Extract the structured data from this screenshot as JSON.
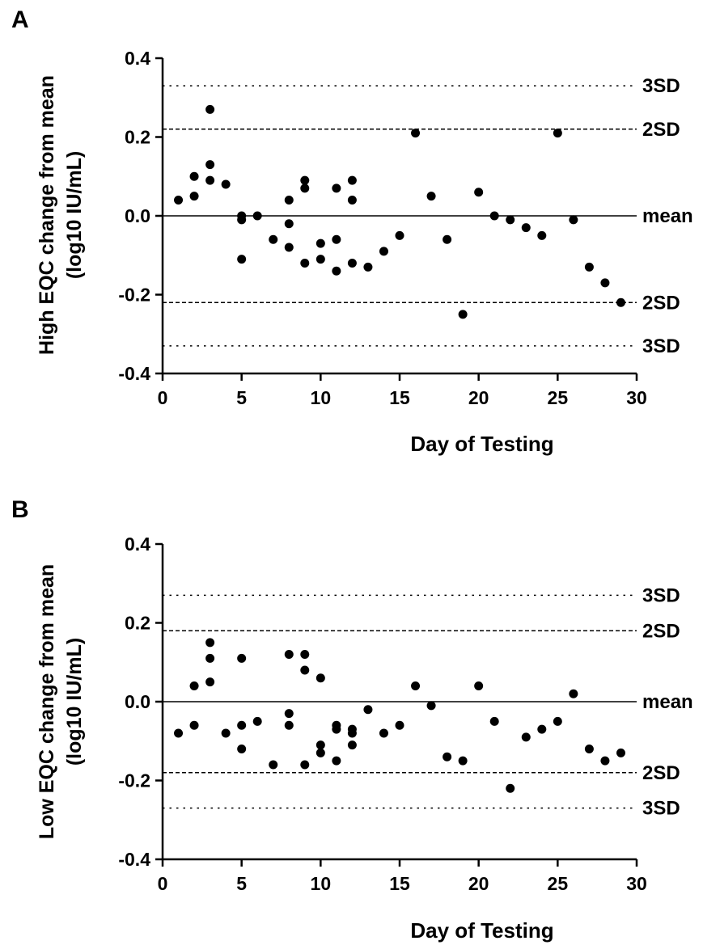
{
  "chart_data": [
    {
      "type": "scatter",
      "panel_label": "A",
      "title": "",
      "xlabel": "Day of Testing",
      "ylabel_line1": "High EQC change from mean",
      "ylabel_line2": "(log10 IU/mL)",
      "xlim": [
        0,
        30
      ],
      "ylim": [
        -0.4,
        0.4
      ],
      "xticks": [
        0,
        5,
        10,
        15,
        20,
        25,
        30
      ],
      "yticks": [
        -0.4,
        -0.2,
        0.0,
        0.2,
        0.4
      ],
      "xtick_labels": [
        "0",
        "5",
        "10",
        "15",
        "20",
        "25",
        "30"
      ],
      "ytick_labels": [
        "-0.4",
        "-0.2",
        "0.0",
        "0.2",
        "0.4"
      ],
      "grid": false,
      "marker_color": "#000000",
      "reference_lines": [
        {
          "label": "3SD",
          "y": 0.33,
          "style": "dotted"
        },
        {
          "label": "2SD",
          "y": 0.22,
          "style": "dashed"
        },
        {
          "label": "mean",
          "y": 0.0,
          "style": "solid"
        },
        {
          "label": "2SD",
          "y": -0.22,
          "style": "dashed"
        },
        {
          "label": "3SD",
          "y": -0.33,
          "style": "dotted"
        }
      ],
      "points": [
        [
          1,
          0.04
        ],
        [
          2,
          0.1
        ],
        [
          2,
          0.05
        ],
        [
          3,
          0.27
        ],
        [
          3,
          0.13
        ],
        [
          3,
          0.09
        ],
        [
          4,
          0.08
        ],
        [
          5,
          0.0
        ],
        [
          5,
          -0.01
        ],
        [
          5,
          -0.11
        ],
        [
          6,
          0.0
        ],
        [
          7,
          -0.06
        ],
        [
          8,
          0.04
        ],
        [
          8,
          -0.02
        ],
        [
          8,
          -0.08
        ],
        [
          9,
          0.09
        ],
        [
          9,
          0.07
        ],
        [
          9,
          -0.12
        ],
        [
          10,
          -0.07
        ],
        [
          10,
          -0.11
        ],
        [
          11,
          0.07
        ],
        [
          11,
          -0.06
        ],
        [
          11,
          -0.14
        ],
        [
          12,
          0.09
        ],
        [
          12,
          0.04
        ],
        [
          12,
          -0.12
        ],
        [
          13,
          -0.13
        ],
        [
          14,
          -0.09
        ],
        [
          15,
          -0.05
        ],
        [
          16,
          0.21
        ],
        [
          17,
          0.05
        ],
        [
          18,
          -0.06
        ],
        [
          19,
          -0.25
        ],
        [
          20,
          0.06
        ],
        [
          21,
          0.0
        ],
        [
          22,
          -0.01
        ],
        [
          23,
          -0.03
        ],
        [
          24,
          -0.05
        ],
        [
          25,
          0.21
        ],
        [
          26,
          -0.01
        ],
        [
          27,
          -0.13
        ],
        [
          28,
          -0.17
        ],
        [
          29,
          -0.22
        ]
      ]
    },
    {
      "type": "scatter",
      "panel_label": "B",
      "title": "",
      "xlabel": "Day of Testing",
      "ylabel_line1": "Low EQC change from mean",
      "ylabel_line2": "(log10 IU/mL)",
      "xlim": [
        0,
        30
      ],
      "ylim": [
        -0.4,
        0.4
      ],
      "xticks": [
        0,
        5,
        10,
        15,
        20,
        25,
        30
      ],
      "yticks": [
        -0.4,
        -0.2,
        0.0,
        0.2,
        0.4
      ],
      "xtick_labels": [
        "0",
        "5",
        "10",
        "15",
        "20",
        "25",
        "30"
      ],
      "ytick_labels": [
        "-0.4",
        "-0.2",
        "0.0",
        "0.2",
        "0.4"
      ],
      "grid": false,
      "marker_color": "#000000",
      "reference_lines": [
        {
          "label": "3SD",
          "y": 0.27,
          "style": "dotted"
        },
        {
          "label": "2SD",
          "y": 0.18,
          "style": "dashed"
        },
        {
          "label": "mean",
          "y": 0.0,
          "style": "solid"
        },
        {
          "label": "2SD",
          "y": -0.18,
          "style": "dashed"
        },
        {
          "label": "3SD",
          "y": -0.27,
          "style": "dotted"
        }
      ],
      "points": [
        [
          1,
          -0.08
        ],
        [
          2,
          0.04
        ],
        [
          2,
          -0.06
        ],
        [
          3,
          0.15
        ],
        [
          3,
          0.11
        ],
        [
          3,
          0.05
        ],
        [
          4,
          -0.08
        ],
        [
          5,
          0.11
        ],
        [
          5,
          -0.06
        ],
        [
          5,
          -0.12
        ],
        [
          6,
          -0.05
        ],
        [
          7,
          -0.16
        ],
        [
          8,
          0.12
        ],
        [
          8,
          -0.03
        ],
        [
          8,
          -0.06
        ],
        [
          9,
          0.12
        ],
        [
          9,
          0.08
        ],
        [
          9,
          -0.16
        ],
        [
          10,
          0.06
        ],
        [
          10,
          -0.11
        ],
        [
          10,
          -0.13
        ],
        [
          11,
          -0.06
        ],
        [
          11,
          -0.07
        ],
        [
          11,
          -0.15
        ],
        [
          12,
          -0.07
        ],
        [
          12,
          -0.08
        ],
        [
          12,
          -0.11
        ],
        [
          13,
          -0.02
        ],
        [
          14,
          -0.08
        ],
        [
          15,
          -0.06
        ],
        [
          16,
          0.04
        ],
        [
          17,
          -0.01
        ],
        [
          18,
          -0.14
        ],
        [
          19,
          -0.15
        ],
        [
          20,
          0.04
        ],
        [
          21,
          -0.05
        ],
        [
          22,
          -0.22
        ],
        [
          23,
          -0.09
        ],
        [
          24,
          -0.07
        ],
        [
          25,
          -0.05
        ],
        [
          26,
          0.02
        ],
        [
          27,
          -0.12
        ],
        [
          28,
          -0.15
        ],
        [
          29,
          -0.13
        ]
      ]
    }
  ]
}
